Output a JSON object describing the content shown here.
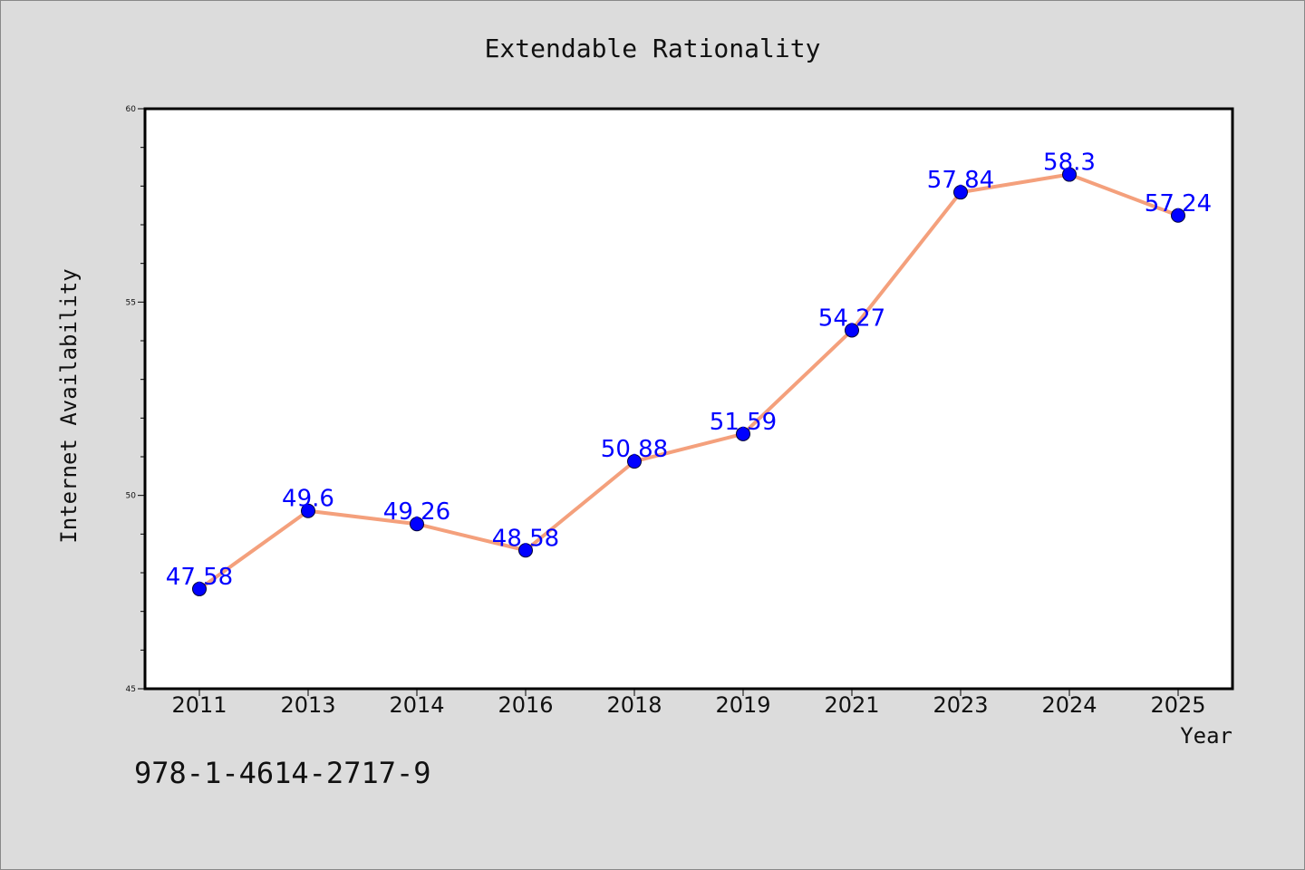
{
  "chart_data": {
    "type": "line",
    "title": "Extendable Rationality",
    "xlabel": "Year",
    "ylabel": "Internet Availability",
    "categories": [
      "2011",
      "2013",
      "2014",
      "2016",
      "2018",
      "2019",
      "2021",
      "2023",
      "2024",
      "2025"
    ],
    "values": [
      47.58,
      49.6,
      49.26,
      48.58,
      50.88,
      51.59,
      54.27,
      57.84,
      58.3,
      57.24
    ],
    "value_labels": [
      "47.58",
      "49.6",
      "49.26",
      "48.58",
      "50.88",
      "51.59",
      "54.27",
      "57.84",
      "58.3",
      "57.24"
    ],
    "ylim": [
      45,
      60
    ],
    "yticks": [
      "45",
      "50",
      "55",
      "60"
    ],
    "grid": false,
    "line_color": "#f4a07c",
    "marker_color": "#0000ff",
    "label_color": "#0000ff"
  },
  "footer_text": "978-1-4614-2717-9"
}
